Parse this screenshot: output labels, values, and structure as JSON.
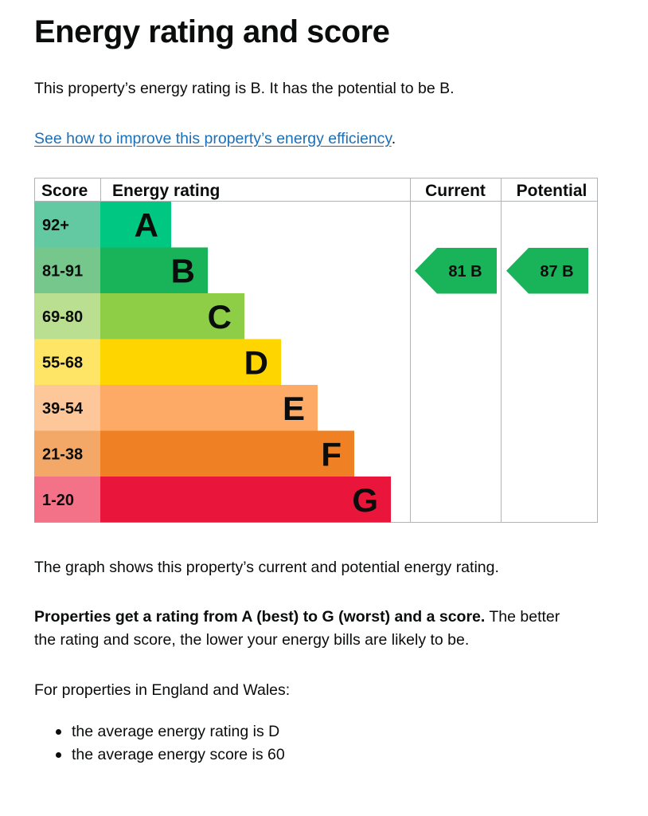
{
  "page": {
    "title": "Energy rating and score",
    "rating_sentence": "This property’s energy rating is B. It has the potential to be B.",
    "improve_link": "See how to improve this property’s energy efficiency",
    "improve_link_suffix": ".",
    "graph_note": "The graph shows this property’s current and potential energy rating.",
    "rating_info_bold": "Properties get a rating from A (best) to G (worst) and a score.",
    "rating_info_rest_line1": " The better",
    "rating_info_line2": "the rating and score, the lower your energy bills are likely to be.",
    "region_intro": "For properties in England and Wales:",
    "bullets": [
      "the average energy rating is D",
      "the average energy score is 60"
    ]
  },
  "chart_data": {
    "type": "table",
    "headers": {
      "score": "Score",
      "energy_rating": "Energy rating",
      "current": "Current",
      "potential": "Potential"
    },
    "bands": [
      {
        "band": "A",
        "score": "92+",
        "bar_color": "#00c781",
        "score_color": "#63c9a2"
      },
      {
        "band": "B",
        "score": "81-91",
        "bar_color": "#19b459",
        "score_color": "#75c78b"
      },
      {
        "band": "C",
        "score": "69-80",
        "bar_color": "#8dce46",
        "score_color": "#badf90"
      },
      {
        "band": "D",
        "score": "55-68",
        "bar_color": "#ffd500",
        "score_color": "#ffe566"
      },
      {
        "band": "E",
        "score": "39-54",
        "bar_color": "#fcaa65",
        "score_color": "#fdc79a"
      },
      {
        "band": "F",
        "score": "21-38",
        "bar_color": "#ef8023",
        "score_color": "#f4a867"
      },
      {
        "band": "G",
        "score": "1-20",
        "bar_color": "#e9153b",
        "score_color": "#f47288"
      }
    ],
    "current": {
      "score": 81,
      "band": "B",
      "label": "81 B"
    },
    "potential": {
      "score": 87,
      "band": "B",
      "label": "87 B"
    }
  }
}
